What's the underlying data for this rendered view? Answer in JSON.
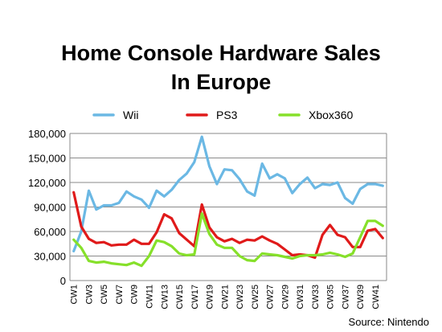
{
  "chart_data": {
    "type": "line",
    "title_lines": [
      "Home Console Hardware Sales",
      "In Europe"
    ],
    "source": "Source: Nintendo",
    "ylim": [
      0,
      180000
    ],
    "yticks": [
      "0",
      "30,000",
      "60,000",
      "90,000",
      "120,000",
      "150,000",
      "180,000"
    ],
    "ytick_values": [
      0,
      30000,
      60000,
      90000,
      120000,
      150000,
      180000
    ],
    "x_tick_labels": [
      "CW1",
      "CW3",
      "CW5",
      "CW7",
      "CW9",
      "CW11",
      "CW13",
      "CW15",
      "CW17",
      "CW19",
      "CW21",
      "CW23",
      "CW25",
      "CW27",
      "CW29",
      "CW31",
      "CW33",
      "CW35",
      "CW37",
      "CW39",
      "CW41"
    ],
    "x": [
      "CW1",
      "CW2",
      "CW3",
      "CW4",
      "CW5",
      "CW6",
      "CW7",
      "CW8",
      "CW9",
      "CW10",
      "CW11",
      "CW12",
      "CW13",
      "CW14",
      "CW15",
      "CW16",
      "CW17",
      "CW18",
      "CW19",
      "CW20",
      "CW21",
      "CW22",
      "CW23",
      "CW24",
      "CW25",
      "CW26",
      "CW27",
      "CW28",
      "CW29",
      "CW30",
      "CW31",
      "CW32",
      "CW33",
      "CW34",
      "CW35",
      "CW36",
      "CW37",
      "CW38",
      "CW39",
      "CW40",
      "CW41",
      "CW42"
    ],
    "legend_position": "top",
    "series": [
      {
        "name": "Wii",
        "color": "#6bb8e4",
        "values": [
          36000,
          60000,
          110000,
          87000,
          92000,
          92000,
          95000,
          109000,
          103000,
          99000,
          89000,
          110000,
          103000,
          111000,
          123000,
          131000,
          145000,
          176000,
          140000,
          118000,
          136000,
          135000,
          124000,
          109000,
          104000,
          143000,
          125000,
          130000,
          125000,
          107000,
          118000,
          126000,
          113000,
          118000,
          117000,
          120000,
          101000,
          94000,
          112000,
          118000,
          118000,
          116000
        ]
      },
      {
        "name": "PS3",
        "color": "#e01a1a",
        "values": [
          108000,
          66000,
          51000,
          46000,
          47000,
          43000,
          44000,
          44000,
          50000,
          45000,
          45000,
          59000,
          81000,
          76000,
          58000,
          50000,
          42000,
          93000,
          65000,
          53000,
          48000,
          51000,
          46000,
          50000,
          49000,
          54000,
          49000,
          45000,
          38000,
          31000,
          32000,
          31000,
          28000,
          56000,
          68000,
          56000,
          53000,
          41000,
          41000,
          61000,
          63000,
          52000
        ]
      },
      {
        "name": "Xbox360",
        "color": "#86e02a",
        "values": [
          50000,
          40000,
          24000,
          22000,
          23000,
          21000,
          20000,
          19000,
          22000,
          18000,
          30000,
          49000,
          47000,
          42000,
          33000,
          31000,
          32000,
          82000,
          57000,
          44000,
          40000,
          40000,
          30000,
          25000,
          24000,
          33000,
          32000,
          31000,
          29000,
          27000,
          30000,
          31000,
          31000,
          32000,
          34000,
          32000,
          29000,
          33000,
          53000,
          73000,
          73000,
          67000
        ]
      }
    ]
  }
}
